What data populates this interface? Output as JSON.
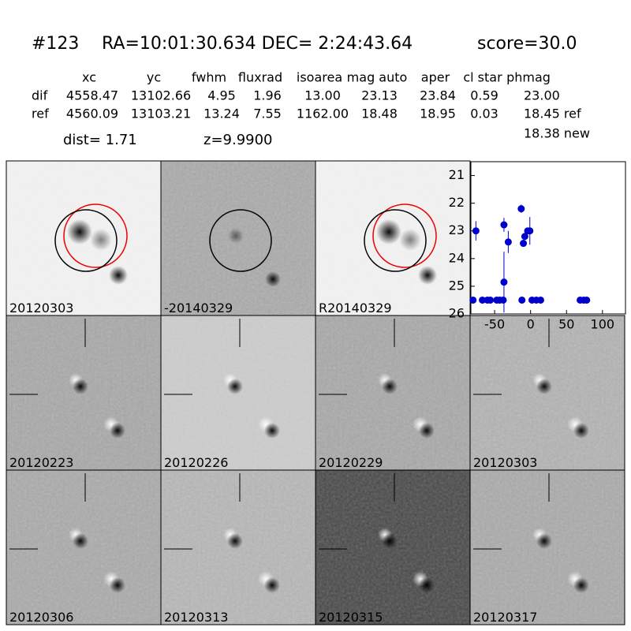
{
  "header": {
    "id": "#123",
    "coords": "RA=10:01:30.634 DEC= 2:24:43.64",
    "score": "score=30.0"
  },
  "table": {
    "columns": [
      "xc",
      "yc",
      "fwhm",
      "fluxrad",
      "isoarea",
      "mag auto",
      "aper",
      "cl star",
      "phmag"
    ],
    "rows": [
      [
        "dif",
        "4558.47",
        "13102.66",
        "4.95",
        "1.96",
        "13.00",
        "23.13",
        "23.84",
        "0.59",
        "23.00"
      ],
      [
        "ref",
        "4560.09",
        "13103.21",
        "13.24",
        "7.55",
        "1162.00",
        "18.48",
        "18.95",
        "0.03",
        "18.45 ref"
      ]
    ],
    "extra": "18.38 new"
  },
  "dist": "dist=  1.71",
  "z": "z=9.9900",
  "stamps": [
    "20120303",
    "-20140329",
    "R20140329",
    "20120223",
    "20120226",
    "20120229",
    "20120303",
    "20120306",
    "20120313",
    "20120315",
    "20120317"
  ],
  "chart_data": {
    "type": "scatter",
    "color": "#0000cc",
    "x": [
      -76,
      -80,
      -67,
      -60,
      -56,
      -47,
      -43,
      -38,
      -12,
      2,
      8,
      14,
      69,
      74,
      78,
      -37,
      -37,
      -31,
      -13,
      -10,
      -8,
      -4,
      -1
    ],
    "values": [
      23.0,
      25.5,
      25.5,
      25.5,
      25.5,
      25.5,
      25.5,
      25.5,
      25.5,
      25.5,
      25.5,
      25.5,
      25.5,
      25.5,
      25.5,
      24.85,
      22.78,
      23.4,
      22.2,
      23.45,
      23.2,
      23.0,
      23.0
    ],
    "errors": [
      0.35,
      null,
      null,
      null,
      null,
      null,
      null,
      null,
      null,
      null,
      null,
      null,
      null,
      null,
      null,
      1.1,
      0.25,
      0.4,
      0.15,
      null,
      null,
      0.1,
      0.5
    ],
    "xlim": [
      -83,
      132
    ],
    "ylim": [
      26,
      20.5
    ],
    "xticks": [
      -50,
      0,
      50,
      100
    ],
    "yticks": [
      21,
      22,
      23,
      24,
      25,
      26
    ]
  }
}
